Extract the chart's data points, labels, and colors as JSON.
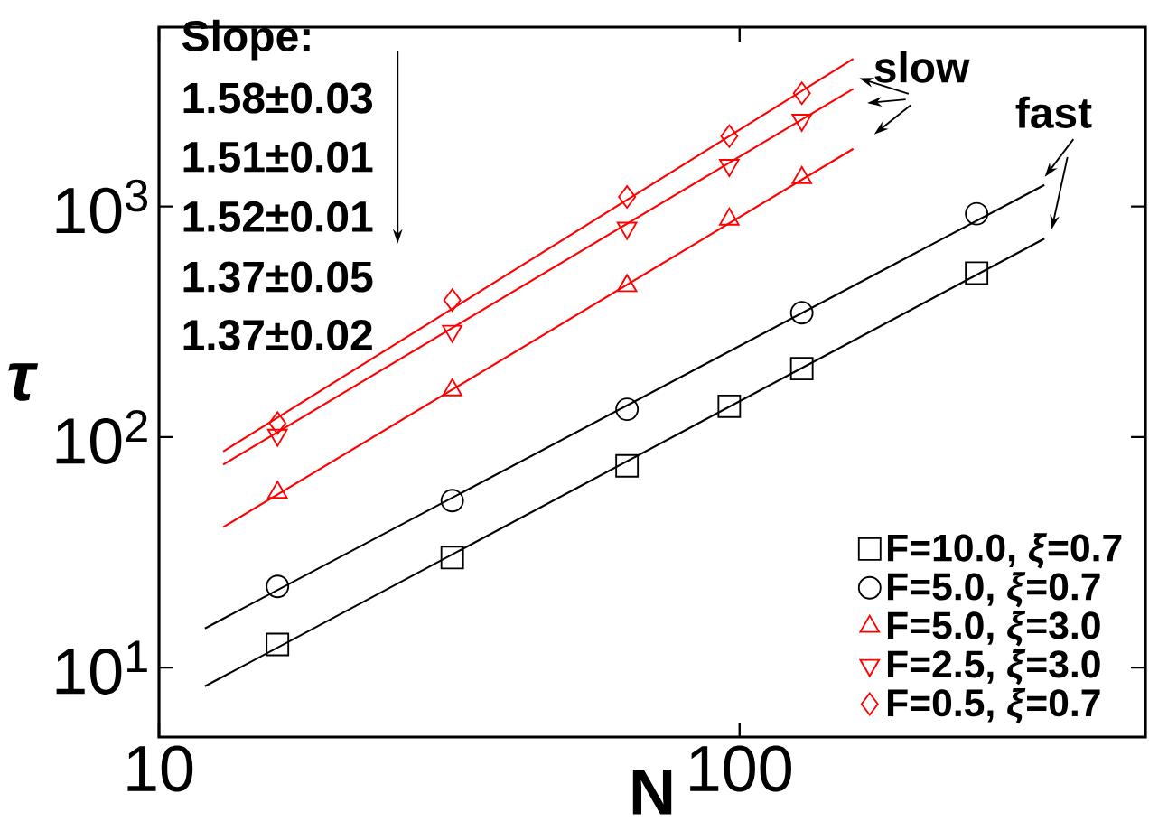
{
  "chart_data": {
    "type": "scatter",
    "xlabel": "N",
    "ylabel": "τ",
    "log": "xy",
    "grid": false,
    "legend": "bottom right",
    "xlim": [
      10,
      500
    ],
    "xticks": [
      10,
      100
    ],
    "ylim": [
      5,
      6000
    ],
    "yticks": [
      {
        "value": 10,
        "label": "10$^{1}$"
      },
      {
        "value": 100,
        "label": "10$^{2}$"
      },
      {
        "value": 1000,
        "label": "10$^{3}$"
      }
    ],
    "annotations": [
      "Slope:",
      "1.58±0.03",
      "1.51±0.01",
      "1.52±0.01",
      "1.37±0.05",
      "1.37±0.02",
      "slow",
      "fast"
    ],
    "series": [
      {
        "name": "F=10.0, *ξ*=0.7",
        "color": "#000000",
        "marker": "square",
        "x": [
          16,
          32,
          64,
          96,
          128,
          256
        ],
        "values": [
          12.6,
          30,
          75,
          136,
          198,
          514
        ]
      },
      {
        "name": "F=5.0, *ξ*=0.7",
        "color": "#000000",
        "marker": "circle",
        "x": [
          16,
          32,
          64,
          128,
          256
        ],
        "values": [
          22.5,
          53,
          132,
          346,
          930
        ]
      },
      {
        "name": "F=5.0, *ξ*=3.0",
        "color": "#ff0000",
        "marker": "triangle",
        "x": [
          16,
          32,
          64,
          96,
          128
        ],
        "values": [
          57.5,
          160,
          453,
          880,
          1333
        ]
      },
      {
        "name": "F=2.5, *ξ*=3.0",
        "color": "#ff0000",
        "marker": "triangle-down",
        "x": [
          16,
          32,
          64,
          96,
          128
        ],
        "values": [
          102,
          288,
          806,
          1510,
          2370
        ]
      },
      {
        "name": "F=0.5, *ξ*=0.7",
        "color": "#ff0000",
        "marker": "diamond",
        "x": [
          16,
          32,
          64,
          96,
          128
        ],
        "values": [
          115,
          393,
          1100,
          2020,
          3100
        ]
      },
      {
        "type": "line",
        "color": "#000000",
        "x": [
          12,
          335
        ],
        "values": [
          8.3,
          725
        ]
      },
      {
        "type": "line",
        "color": "#000000",
        "x": [
          12,
          335
        ],
        "values": [
          14.8,
          1240
        ]
      },
      {
        "type": "line",
        "color": "#ff0000",
        "x": [
          12.9,
          157
        ],
        "values": [
          40.7,
          1780
        ]
      },
      {
        "type": "line",
        "color": "#ff0000",
        "x": [
          12.9,
          157
        ],
        "values": [
          76,
          3240
        ]
      },
      {
        "type": "line",
        "color": "#ff0000",
        "x": [
          12.9,
          157
        ],
        "values": [
          86.6,
          4370
        ]
      }
    ]
  }
}
